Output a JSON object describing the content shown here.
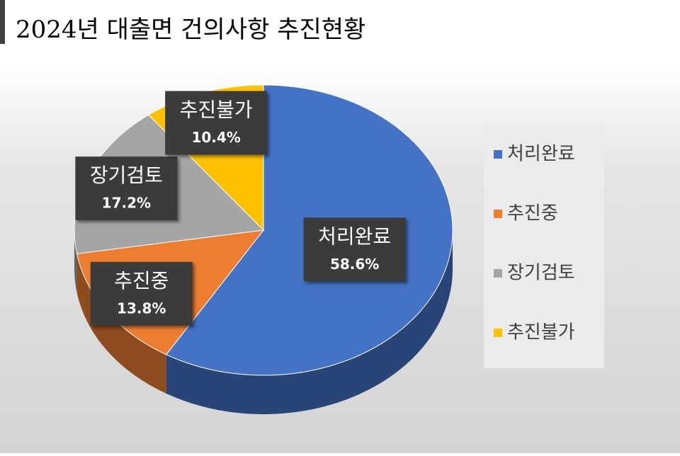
{
  "chart_data": {
    "type": "pie",
    "title": "2024년 대출면 건의사항 추진현황",
    "categories": [
      "처리완료",
      "추진중",
      "장기검토",
      "추진불가"
    ],
    "values": [
      58.6,
      13.8,
      17.2,
      10.4
    ],
    "value_labels": [
      "58.6%",
      "13.8%",
      "17.2%",
      "10.4%"
    ],
    "colors": [
      "#4472c4",
      "#ed7d31",
      "#a5a5a5",
      "#ffc000"
    ],
    "legend": "right"
  }
}
